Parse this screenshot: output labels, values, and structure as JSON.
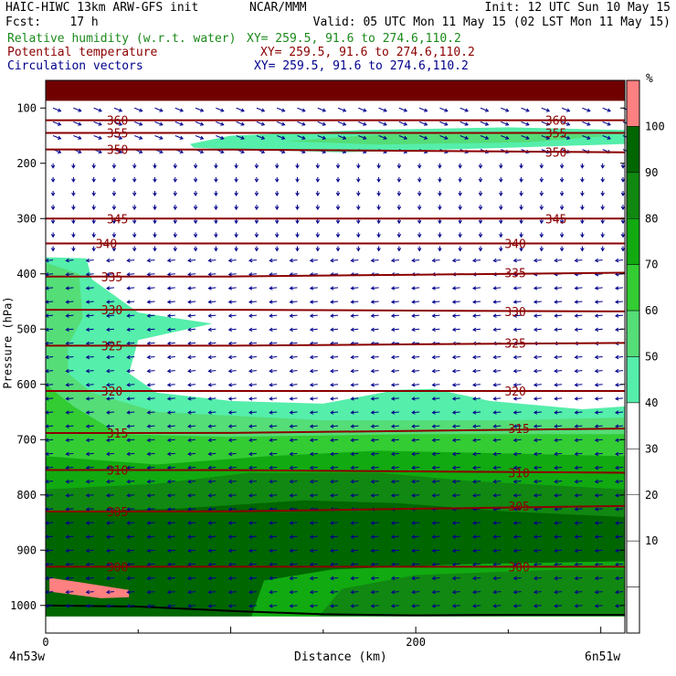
{
  "header": {
    "left_line1": "HAIC-HIWC 13km ARW-GFS init",
    "left_line1b": "NCAR/MMM",
    "left_line2": "Fcst:    17 h",
    "right_line1": "Init: 12 UTC Sun 10 May 15",
    "right_line2": "Valid: 05 UTC Mon 11 May 15 (02 LST Mon 11 May 15)"
  },
  "fields": [
    {
      "name": "Relative humidity (w.r.t. water)",
      "xy": "XY= 259.5, 91.6 to 274.6,110.2",
      "color": "#1a8a1a"
    },
    {
      "name": "Potential temperature",
      "xy": "XY= 259.5, 91.6 to 274.6,110.2",
      "color": "#8b0000"
    },
    {
      "name": "Circulation vectors",
      "xy": "XY= 259.5, 91.6 to 274.6,110.2",
      "color": "#00008b"
    }
  ],
  "chart_data": {
    "type": "heatmap",
    "subtype": "vertical cross-section",
    "xlabel": "Distance (km)",
    "ylabel": "Pressure (hPa)",
    "xlim": [
      0,
      313
    ],
    "ylim": [
      1050,
      50
    ],
    "x_ticks": [
      "0",
      "200"
    ],
    "x_tick_values": [
      0,
      200
    ],
    "y_ticks": [
      "100",
      "200",
      "300",
      "400",
      "500",
      "600",
      "700",
      "800",
      "900",
      "1000"
    ],
    "y_tick_values": [
      100,
      200,
      300,
      400,
      500,
      600,
      700,
      800,
      900,
      1000
    ],
    "endpoint_left": "4n53w",
    "endpoint_right": "6n51w",
    "colorbar": {
      "unit": "%",
      "levels": [
        10,
        20,
        30,
        40,
        50,
        60,
        70,
        80,
        90,
        100
      ],
      "tick_labels": [
        "10",
        "20",
        "30",
        "40",
        "50",
        "60",
        "70",
        "80",
        "90",
        "100"
      ],
      "colors": [
        "#ffffff",
        "#ffffff",
        "#ffffff",
        "#ffffff",
        "#ffffff",
        "#55eeaa",
        "#55dd77",
        "#33cc33",
        "#11aa11",
        "#118811",
        "#006600",
        "#ff8080"
      ]
    },
    "theta_contours": [
      {
        "value": 360,
        "label": "360",
        "p_left": 122,
        "p_right": 122
      },
      {
        "value": 355,
        "label": "355",
        "p_left": 145,
        "p_right": 145
      },
      {
        "value": 350,
        "label": "350",
        "p_left": 175,
        "p_right": 180
      },
      {
        "value": 345,
        "label": "345",
        "p_left": 300,
        "p_right": 300
      },
      {
        "value": 340,
        "label": "340",
        "p_left": 345,
        "p_right": 345
      },
      {
        "value": 335,
        "label": "335",
        "p_left": 405,
        "p_right": 398
      },
      {
        "value": 330,
        "label": "330",
        "p_left": 465,
        "p_right": 468
      },
      {
        "value": 325,
        "label": "325",
        "p_left": 530,
        "p_right": 525
      },
      {
        "value": 320,
        "label": "320",
        "p_left": 612,
        "p_right": 612
      },
      {
        "value": 315,
        "label": "315",
        "p_left": 688,
        "p_right": 680
      },
      {
        "value": 310,
        "label": "310",
        "p_left": 755,
        "p_right": 760
      },
      {
        "value": 305,
        "label": "305",
        "p_left": 830,
        "p_right": 820
      },
      {
        "value": 300,
        "label": "300",
        "p_left": 930,
        "p_right": 930
      }
    ],
    "grid": false
  }
}
